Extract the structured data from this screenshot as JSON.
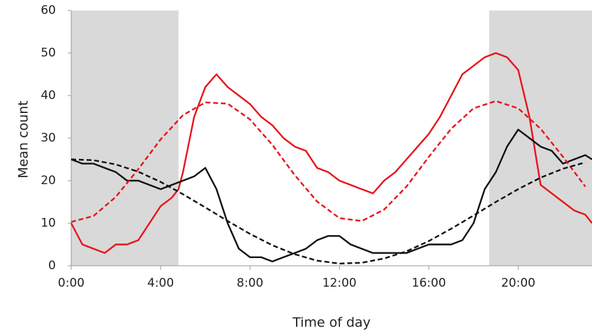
{
  "chart_data": {
    "type": "line",
    "x_label": "Time of day",
    "y_label": "Mean count",
    "xlim": [
      0,
      23.3
    ],
    "ylim": [
      0,
      60
    ],
    "xticks": [
      {
        "value": 0,
        "label": "0:00"
      },
      {
        "value": 4,
        "label": "4:00"
      },
      {
        "value": 8,
        "label": "8:00"
      },
      {
        "value": 12,
        "label": "12:00"
      },
      {
        "value": 16,
        "label": "16:00"
      },
      {
        "value": 20,
        "label": "20:00"
      }
    ],
    "yticks": [
      0,
      10,
      20,
      30,
      40,
      50,
      60
    ],
    "shaded": [
      [
        0,
        4.8
      ],
      [
        18.7,
        23.3
      ]
    ],
    "shade_color": "#d9d9d9",
    "series": [
      {
        "color": "#e8141b",
        "dashed": false,
        "x": [
          0,
          0.5,
          1,
          1.5,
          2,
          2.5,
          3,
          3.5,
          4,
          4.5,
          4.8,
          5,
          5.5,
          6,
          6.5,
          7,
          7.5,
          8,
          8.5,
          9,
          9.5,
          10,
          10.5,
          11,
          11.5,
          12,
          12.5,
          13,
          13.5,
          14,
          14.5,
          15,
          15.5,
          16,
          16.5,
          17,
          17.5,
          18,
          18.5,
          19,
          19.5,
          20,
          20.5,
          21,
          21.5,
          22,
          22.5,
          23,
          23.3
        ],
        "values": [
          10,
          5,
          4,
          3,
          5,
          5,
          6,
          10,
          14,
          16,
          18,
          22,
          35,
          42,
          45,
          42,
          40,
          38,
          35,
          33,
          30,
          28,
          27,
          23,
          22,
          20,
          19,
          18,
          17,
          20,
          22,
          25,
          28,
          31,
          35,
          40,
          45,
          47,
          49,
          50,
          49,
          46,
          35,
          19,
          17,
          15,
          13,
          12,
          10
        ]
      },
      {
        "color": "#111111",
        "dashed": false,
        "x": [
          0,
          0.5,
          1,
          1.5,
          2,
          2.5,
          3,
          3.5,
          4,
          4.5,
          5,
          5.5,
          6,
          6.5,
          7,
          7.5,
          8,
          8.5,
          9,
          9.5,
          10,
          10.5,
          11,
          11.5,
          12,
          12.5,
          13,
          13.5,
          14,
          14.5,
          15,
          15.5,
          16,
          16.5,
          17,
          17.5,
          18,
          18.5,
          19,
          19.5,
          20,
          20.5,
          21,
          21.5,
          22,
          22.5,
          23,
          23.3
        ],
        "values": [
          25,
          24,
          24,
          23,
          22,
          20,
          20,
          19,
          18,
          19,
          20,
          21,
          23,
          18,
          10,
          4,
          2,
          2,
          1,
          2,
          3,
          4,
          6,
          7,
          7,
          5,
          4,
          3,
          3,
          3,
          3,
          4,
          5,
          5,
          5,
          6,
          10,
          18,
          22,
          28,
          32,
          30,
          28,
          27,
          24,
          25,
          26,
          25
        ]
      },
      {
        "color": "#e8141b",
        "dashed": true,
        "x": [
          0,
          1,
          2,
          3,
          4,
          5,
          6,
          7,
          8,
          9,
          10,
          11,
          12,
          13,
          14,
          15,
          16,
          17,
          18,
          19,
          20,
          21,
          22,
          23
        ],
        "values": [
          10.3,
          11.7,
          16.2,
          22.7,
          29.7,
          35.4,
          38.4,
          38.1,
          34.4,
          28.4,
          21.3,
          15.1,
          11.2,
          10.5,
          13.2,
          18.6,
          25.6,
          32.2,
          37,
          38.7,
          37,
          32.2,
          25.6,
          18.6
        ]
      },
      {
        "color": "#111111",
        "dashed": true,
        "x": [
          0,
          1,
          2,
          3,
          4,
          5,
          6,
          7,
          8,
          9,
          10,
          11,
          12,
          13,
          14,
          15,
          16,
          17,
          18,
          19,
          20,
          21,
          22,
          23
        ],
        "values": [
          25,
          24.8,
          23.8,
          22.1,
          19.7,
          16.8,
          13.7,
          10.5,
          7.5,
          4.8,
          2.7,
          1.2,
          0.5,
          0.7,
          1.7,
          3.4,
          5.8,
          8.7,
          11.8,
          15,
          18,
          20.7,
          22.8,
          24.3
        ]
      }
    ]
  }
}
